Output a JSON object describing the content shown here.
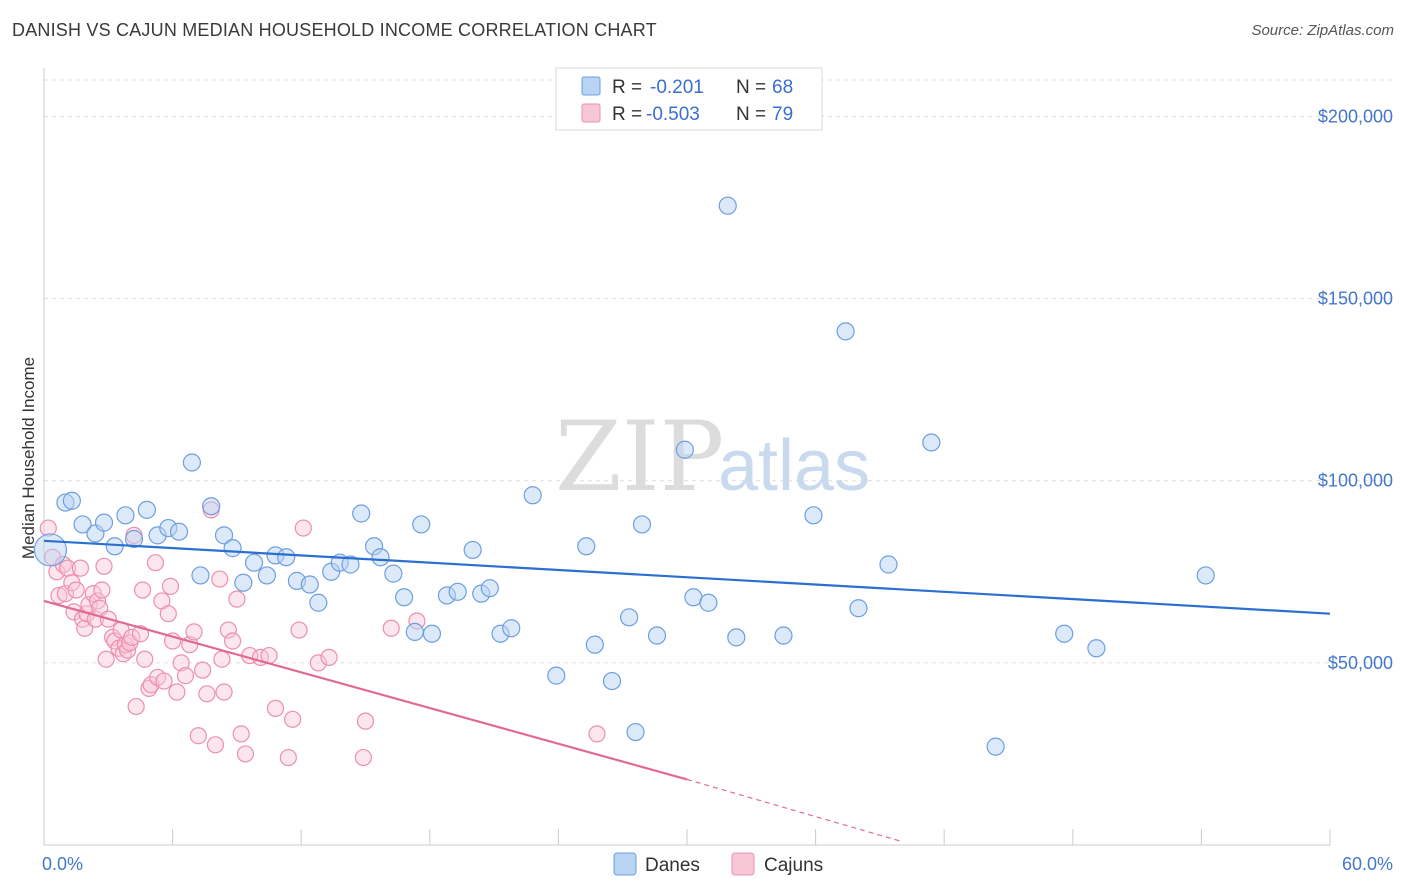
{
  "title": "DANISH VS CAJUN MEDIAN HOUSEHOLD INCOME CORRELATION CHART",
  "source": "Source: ZipAtlas.com",
  "watermark": {
    "zip": "ZIP",
    "atlas": "atlas"
  },
  "legend": {
    "series1": {
      "r_label": "R =",
      "r_value": "-0.201",
      "n_label": "N =",
      "n_value": "68"
    },
    "series2": {
      "r_label": "R =",
      "r_value": "-0.503",
      "n_label": "N =",
      "n_value": "79"
    }
  },
  "bottom_legend": {
    "danes": "Danes",
    "cajuns": "Cajuns"
  },
  "colors": {
    "danes_fill": "#b9d3f3",
    "danes_stroke": "#6d9fe0",
    "danes_line": "#2b6fd0",
    "cajuns_fill": "#f8c7d6",
    "cajuns_stroke": "#ec8fae",
    "cajuns_line": "#e26a92"
  },
  "chart_data": {
    "type": "scatter",
    "title": "DANISH VS CAJUN MEDIAN HOUSEHOLD INCOME CORRELATION CHART",
    "xlabel": "",
    "ylabel": "Median Household Income",
    "xlim": [
      0,
      60
    ],
    "ylim": [
      0,
      210000
    ],
    "x_tick_labels": [
      "0.0%",
      "60.0%"
    ],
    "y_ticks": [
      50000,
      100000,
      150000,
      200000
    ],
    "y_tick_labels": [
      "$50,000",
      "$100,000",
      "$150,000",
      "$200,000"
    ],
    "grid": true,
    "legend_position": "top-center",
    "series": [
      {
        "name": "Danes",
        "r": -0.201,
        "n": 68,
        "trend": {
          "x0": 0,
          "y0": 83500,
          "x1": 60,
          "y1": 63500
        },
        "points": [
          [
            0.3,
            81000
          ],
          [
            1.0,
            94000
          ],
          [
            1.3,
            94500
          ],
          [
            1.8,
            88000
          ],
          [
            2.4,
            85500
          ],
          [
            2.8,
            88500
          ],
          [
            3.3,
            82000
          ],
          [
            3.8,
            90500
          ],
          [
            4.2,
            84000
          ],
          [
            4.8,
            92000
          ],
          [
            5.3,
            85000
          ],
          [
            5.8,
            87000
          ],
          [
            6.3,
            86000
          ],
          [
            6.9,
            105000
          ],
          [
            7.3,
            74000
          ],
          [
            7.8,
            93000
          ],
          [
            8.4,
            85000
          ],
          [
            8.8,
            81500
          ],
          [
            9.3,
            72000
          ],
          [
            9.8,
            77500
          ],
          [
            10.4,
            74000
          ],
          [
            10.8,
            79500
          ],
          [
            11.3,
            79000
          ],
          [
            11.8,
            72500
          ],
          [
            12.4,
            71500
          ],
          [
            12.8,
            66500
          ],
          [
            13.4,
            75000
          ],
          [
            13.8,
            77500
          ],
          [
            14.3,
            77000
          ],
          [
            14.8,
            91000
          ],
          [
            15.4,
            82000
          ],
          [
            15.7,
            79000
          ],
          [
            16.3,
            74500
          ],
          [
            16.8,
            68000
          ],
          [
            17.3,
            58500
          ],
          [
            17.6,
            88000
          ],
          [
            18.1,
            58000
          ],
          [
            18.8,
            68500
          ],
          [
            19.3,
            69500
          ],
          [
            20.0,
            81000
          ],
          [
            20.4,
            69000
          ],
          [
            20.8,
            70500
          ],
          [
            21.3,
            58000
          ],
          [
            21.8,
            59500
          ],
          [
            22.8,
            96000
          ],
          [
            23.9,
            46500
          ],
          [
            25.3,
            82000
          ],
          [
            25.7,
            55000
          ],
          [
            26.5,
            45000
          ],
          [
            27.6,
            31000
          ],
          [
            27.3,
            62500
          ],
          [
            27.9,
            88000
          ],
          [
            28.6,
            57500
          ],
          [
            29.9,
            108500
          ],
          [
            30.3,
            68000
          ],
          [
            31.0,
            66500
          ],
          [
            31.9,
            175500
          ],
          [
            32.3,
            57000
          ],
          [
            34.5,
            57500
          ],
          [
            35.9,
            90500
          ],
          [
            37.4,
            141000
          ],
          [
            38.0,
            65000
          ],
          [
            39.4,
            77000
          ],
          [
            41.4,
            110500
          ],
          [
            44.4,
            27000
          ],
          [
            47.6,
            58000
          ],
          [
            49.1,
            54000
          ],
          [
            54.2,
            74000
          ]
        ]
      },
      {
        "name": "Cajuns",
        "r": -0.503,
        "n": 79,
        "trend": {
          "x0": 0,
          "y0": 67000,
          "x1": 30,
          "y1": 18000,
          "dashed_x1": 40,
          "dashed_y1": 1000
        },
        "points": [
          [
            0.2,
            87000
          ],
          [
            0.4,
            79000
          ],
          [
            0.6,
            75000
          ],
          [
            0.7,
            68500
          ],
          [
            0.9,
            77000
          ],
          [
            1.0,
            69000
          ],
          [
            1.1,
            76000
          ],
          [
            1.3,
            72000
          ],
          [
            1.4,
            64000
          ],
          [
            1.5,
            70000
          ],
          [
            1.7,
            76000
          ],
          [
            1.8,
            62000
          ],
          [
            1.9,
            59500
          ],
          [
            2.0,
            63500
          ],
          [
            2.1,
            66000
          ],
          [
            2.3,
            69000
          ],
          [
            2.4,
            62000
          ],
          [
            2.5,
            67000
          ],
          [
            2.6,
            65000
          ],
          [
            2.7,
            70000
          ],
          [
            2.8,
            76500
          ],
          [
            2.9,
            51000
          ],
          [
            3.0,
            62000
          ],
          [
            3.2,
            57000
          ],
          [
            3.3,
            56000
          ],
          [
            3.5,
            54000
          ],
          [
            3.6,
            59000
          ],
          [
            3.7,
            52500
          ],
          [
            3.8,
            55000
          ],
          [
            3.9,
            53500
          ],
          [
            4.0,
            55500
          ],
          [
            4.1,
            57000
          ],
          [
            4.2,
            85000
          ],
          [
            4.3,
            38000
          ],
          [
            4.5,
            58000
          ],
          [
            4.6,
            70000
          ],
          [
            4.7,
            51000
          ],
          [
            4.9,
            43000
          ],
          [
            5.0,
            44000
          ],
          [
            5.2,
            77500
          ],
          [
            5.3,
            46000
          ],
          [
            5.5,
            67000
          ],
          [
            5.6,
            45000
          ],
          [
            5.8,
            63500
          ],
          [
            5.9,
            71000
          ],
          [
            6.0,
            56000
          ],
          [
            6.2,
            42000
          ],
          [
            6.4,
            50000
          ],
          [
            6.6,
            46500
          ],
          [
            6.8,
            55000
          ],
          [
            7.0,
            58500
          ],
          [
            7.2,
            30000
          ],
          [
            7.4,
            48000
          ],
          [
            7.6,
            41500
          ],
          [
            7.8,
            92000
          ],
          [
            8.0,
            27500
          ],
          [
            8.2,
            73000
          ],
          [
            8.3,
            51000
          ],
          [
            8.4,
            42000
          ],
          [
            8.6,
            59000
          ],
          [
            8.8,
            56000
          ],
          [
            9.0,
            67500
          ],
          [
            9.2,
            30500
          ],
          [
            9.4,
            25000
          ],
          [
            9.6,
            52000
          ],
          [
            10.1,
            51500
          ],
          [
            10.5,
            52000
          ],
          [
            10.8,
            37500
          ],
          [
            11.4,
            24000
          ],
          [
            11.6,
            34500
          ],
          [
            11.9,
            59000
          ],
          [
            12.1,
            87000
          ],
          [
            12.8,
            50000
          ],
          [
            13.3,
            51500
          ],
          [
            14.9,
            24000
          ],
          [
            15.0,
            34000
          ],
          [
            16.2,
            59500
          ],
          [
            17.4,
            61500
          ],
          [
            25.8,
            30500
          ]
        ]
      }
    ]
  }
}
